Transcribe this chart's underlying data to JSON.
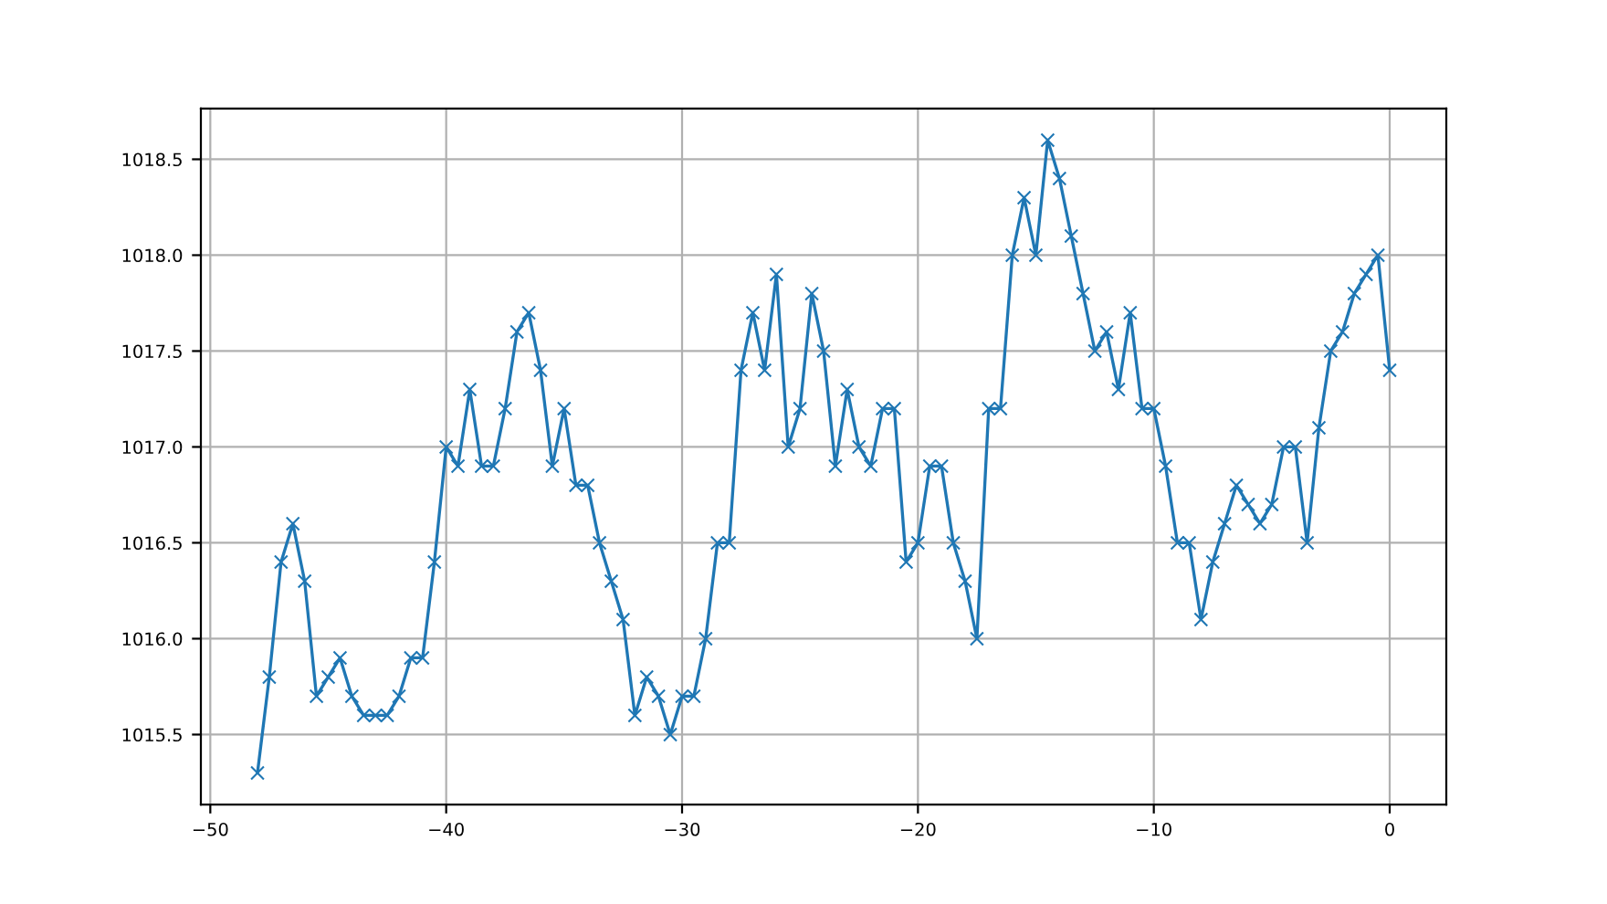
{
  "chart_data": {
    "type": "line",
    "marker": "cross",
    "grid": true,
    "x": [
      -48,
      -47.5,
      -47,
      -46.5,
      -46,
      -45.5,
      -45,
      -44.5,
      -44,
      -43.5,
      -43,
      -42.5,
      -42,
      -41.5,
      -41,
      -40.5,
      -40,
      -39.5,
      -39,
      -38.5,
      -38,
      -37.5,
      -37,
      -36.5,
      -36,
      -35.5,
      -35,
      -34.5,
      -34,
      -33.5,
      -33,
      -32.5,
      -32,
      -31.5,
      -31,
      -30.5,
      -30,
      -29.5,
      -29,
      -28.5,
      -28,
      -27.5,
      -27,
      -26.5,
      -26,
      -25.5,
      -25,
      -24.5,
      -24,
      -23.5,
      -23,
      -22.5,
      -22,
      -21.5,
      -21,
      -20.5,
      -20,
      -19.5,
      -19,
      -18.5,
      -18,
      -17.5,
      -17,
      -16.5,
      -16,
      -15.5,
      -15,
      -14.5,
      -14,
      -13.5,
      -13,
      -12.5,
      -12,
      -11.5,
      -11,
      -10.5,
      -10,
      -9.5,
      -9,
      -8.5,
      -8,
      -7.5,
      -7,
      -6.5,
      -6,
      -5.5,
      -5,
      -4.5,
      -4,
      -3.5,
      -3,
      -2.5,
      -2,
      -1.5,
      -1,
      -0.5,
      0
    ],
    "series": [
      {
        "color": "#1f77b4",
        "values": [
          1015.3,
          1015.8,
          1016.4,
          1016.6,
          1016.3,
          1015.7,
          1015.8,
          1015.9,
          1015.7,
          1015.6,
          1015.6,
          1015.6,
          1015.7,
          1015.9,
          1015.9,
          1016.4,
          1017.0,
          1016.9,
          1017.3,
          1016.9,
          1016.9,
          1017.2,
          1017.6,
          1017.7,
          1017.4,
          1016.9,
          1017.2,
          1016.8,
          1016.8,
          1016.5,
          1016.3,
          1016.1,
          1015.6,
          1015.8,
          1015.7,
          1015.5,
          1015.7,
          1015.7,
          1016.0,
          1016.5,
          1016.5,
          1017.4,
          1017.7,
          1017.4,
          1017.9,
          1017.0,
          1017.2,
          1017.8,
          1017.5,
          1016.9,
          1017.3,
          1017.0,
          1016.9,
          1017.2,
          1017.2,
          1016.4,
          1016.5,
          1016.9,
          1016.9,
          1016.5,
          1016.3,
          1016.0,
          1017.2,
          1017.2,
          1018.0,
          1018.3,
          1018.0,
          1018.6,
          1018.4,
          1018.1,
          1017.8,
          1017.5,
          1017.6,
          1017.3,
          1017.7,
          1017.2,
          1017.2,
          1016.9,
          1016.5,
          1016.5,
          1016.1,
          1016.4,
          1016.6,
          1016.8,
          1016.7,
          1016.6,
          1016.7,
          1017.0,
          1017.0,
          1016.5,
          1017.1,
          1017.5,
          1017.6,
          1017.8,
          1017.9,
          1018.0,
          1017.4
        ]
      }
    ],
    "xlim": [
      -50.4,
      2.4
    ],
    "xticks": [
      {
        "value": -50,
        "label": "−50"
      },
      {
        "value": -40,
        "label": "−40"
      },
      {
        "value": -30,
        "label": "−30"
      },
      {
        "value": -20,
        "label": "−20"
      },
      {
        "value": -10,
        "label": "−10"
      },
      0
    ],
    "ylim": [
      1015.135,
      1018.765
    ],
    "yticks": [
      1015.5,
      {
        "value": 1016,
        "label": "1016.0"
      },
      1016.5,
      {
        "value": 1017,
        "label": "1017.0"
      },
      1017.5,
      {
        "value": 1018,
        "label": "1018.0"
      },
      1018.5
    ]
  }
}
